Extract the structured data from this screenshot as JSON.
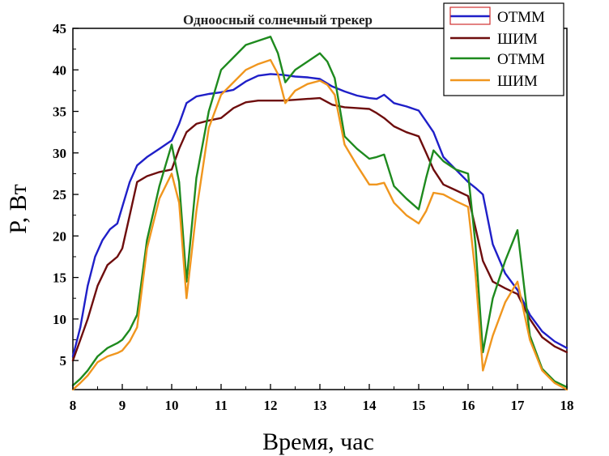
{
  "chart_data": {
    "type": "line",
    "title": "Одноосный солнечный трекер",
    "xlabel": "Время, час",
    "ylabel": "P, Вт",
    "xlim": [
      8,
      18
    ],
    "ylim": [
      1.5,
      45
    ],
    "xticks": [
      "8",
      "9",
      "10",
      "11",
      "12",
      "13",
      "14",
      "15",
      "16",
      "17",
      "18"
    ],
    "yticks": [
      "5",
      "10",
      "15",
      "20",
      "25",
      "30",
      "35",
      "40",
      "45"
    ],
    "grid": false,
    "legend_position": "top-right",
    "series": [
      {
        "name": "ОТММ",
        "color": "#1f1fc8",
        "x": [
          8,
          8.15,
          8.3,
          8.45,
          8.6,
          8.75,
          8.9,
          9,
          9.15,
          9.3,
          9.5,
          9.75,
          10,
          10.15,
          10.3,
          10.5,
          10.75,
          11,
          11.25,
          11.5,
          11.75,
          12,
          12.25,
          12.5,
          12.75,
          13,
          13.25,
          13.5,
          13.75,
          14,
          14.15,
          14.3,
          14.5,
          14.75,
          15,
          15.15,
          15.3,
          15.5,
          15.75,
          16,
          16.15,
          16.3,
          16.5,
          16.75,
          17,
          17.25,
          17.5,
          17.75,
          18
        ],
        "y": [
          5.5,
          9,
          14,
          17.5,
          19.5,
          20.8,
          21.5,
          23.5,
          26.5,
          28.5,
          29.5,
          30.5,
          31.5,
          33.5,
          36,
          36.8,
          37.1,
          37.3,
          37.6,
          38.6,
          39.3,
          39.5,
          39.4,
          39.2,
          39.1,
          38.9,
          38,
          37.4,
          36.9,
          36.6,
          36.5,
          37,
          36,
          35.6,
          35.1,
          33.8,
          32.5,
          29.5,
          28,
          26.5,
          25.8,
          25,
          19,
          15.5,
          13.5,
          10.5,
          8.5,
          7.3,
          6.5
        ]
      },
      {
        "name": "ШИМ",
        "color": "#6e0d0d",
        "x": [
          8,
          8.15,
          8.3,
          8.5,
          8.7,
          8.9,
          9,
          9.15,
          9.3,
          9.5,
          9.75,
          10,
          10.15,
          10.3,
          10.5,
          10.75,
          11,
          11.25,
          11.5,
          11.75,
          12,
          12.25,
          12.5,
          12.75,
          13,
          13.25,
          13.5,
          13.75,
          14,
          14.15,
          14.3,
          14.5,
          14.75,
          15,
          15.15,
          15.3,
          15.5,
          15.75,
          16,
          16.15,
          16.3,
          16.5,
          16.75,
          17,
          17.25,
          17.5,
          17.75,
          18
        ],
        "y": [
          5,
          7.5,
          10,
          14,
          16.5,
          17.5,
          18.5,
          22.5,
          26.5,
          27.2,
          27.7,
          28,
          30.5,
          32.5,
          33.5,
          33.9,
          34.2,
          35.4,
          36.1,
          36.3,
          36.3,
          36.3,
          36.4,
          36.5,
          36.6,
          35.8,
          35.5,
          35.4,
          35.3,
          34.8,
          34.2,
          33.2,
          32.5,
          32,
          30,
          28,
          26.2,
          25.5,
          24.8,
          21,
          17,
          14.5,
          13.7,
          13,
          10,
          7.8,
          6.7,
          6
        ]
      },
      {
        "name": "ОТММ",
        "color": "#1e8a1e",
        "x": [
          8,
          8.15,
          8.3,
          8.5,
          8.7,
          8.9,
          9,
          9.15,
          9.3,
          9.5,
          9.75,
          10,
          10.15,
          10.3,
          10.5,
          10.75,
          11,
          11.25,
          11.5,
          11.75,
          12,
          12.15,
          12.3,
          12.5,
          12.75,
          13,
          13.15,
          13.3,
          13.5,
          13.75,
          14,
          14.15,
          14.3,
          14.5,
          14.75,
          15,
          15.15,
          15.3,
          15.5,
          15.75,
          16,
          16.15,
          16.3,
          16.5,
          16.75,
          17,
          17.25,
          17.5,
          17.75,
          18
        ],
        "y": [
          2,
          2.8,
          3.8,
          5.5,
          6.5,
          7.1,
          7.5,
          8.7,
          10.5,
          19.5,
          26,
          31,
          26.5,
          14.5,
          27,
          35,
          40,
          41.5,
          43,
          43.5,
          44,
          42,
          38.5,
          40,
          41,
          42,
          41,
          39,
          32,
          30.5,
          29.3,
          29.5,
          29.8,
          26,
          24.5,
          23.2,
          27,
          30.3,
          29,
          28,
          27.5,
          19,
          6,
          12.5,
          17,
          20.7,
          8,
          4,
          2.5,
          1.8
        ]
      },
      {
        "name": "ШИМ",
        "color": "#f0961e",
        "x": [
          8,
          8.15,
          8.3,
          8.5,
          8.7,
          8.9,
          9,
          9.15,
          9.3,
          9.5,
          9.75,
          10,
          10.15,
          10.3,
          10.5,
          10.75,
          11,
          11.25,
          11.5,
          11.75,
          12,
          12.15,
          12.3,
          12.5,
          12.75,
          13,
          13.15,
          13.3,
          13.5,
          13.75,
          14,
          14.15,
          14.3,
          14.5,
          14.75,
          15,
          15.15,
          15.3,
          15.5,
          15.75,
          16,
          16.15,
          16.3,
          16.5,
          16.75,
          17,
          17.25,
          17.5,
          17.75,
          18
        ],
        "y": [
          1.5,
          2.3,
          3.2,
          4.8,
          5.5,
          5.9,
          6.2,
          7.3,
          9,
          18.5,
          24.5,
          27.5,
          24,
          12.5,
          23,
          33,
          37,
          38.5,
          40,
          40.7,
          41.2,
          39.5,
          36,
          37.5,
          38.3,
          38.7,
          38.2,
          37,
          31,
          28.5,
          26.2,
          26.2,
          26.4,
          24,
          22.5,
          21.5,
          23,
          25.2,
          25,
          24.2,
          23.5,
          15.5,
          3.8,
          8,
          12,
          14.5,
          7.5,
          3.8,
          2.3,
          1.5
        ]
      }
    ]
  }
}
